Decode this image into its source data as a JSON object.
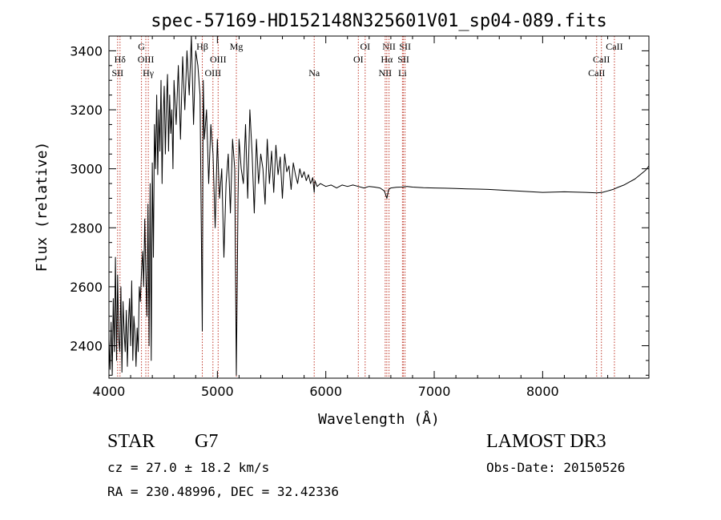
{
  "chart_data": {
    "type": "line",
    "title": "spec-57169-HD152148N325601V01_sp04-089.fits",
    "xlabel": "Wavelength (Å)",
    "ylabel": "Flux (relative)",
    "xlim": [
      4000,
      8980
    ],
    "ylim": [
      2290,
      3450
    ],
    "xticks": [
      4000,
      5000,
      6000,
      7000,
      8000
    ],
    "yticks": [
      2400,
      2600,
      2800,
      3000,
      3200,
      3400
    ],
    "grid": false,
    "series": [
      {
        "name": "spectrum",
        "x": [
          4000,
          4010,
          4020,
          4030,
          4040,
          4050,
          4060,
          4070,
          4080,
          4090,
          4100,
          4110,
          4120,
          4130,
          4140,
          4150,
          4160,
          4170,
          4180,
          4190,
          4200,
          4210,
          4220,
          4230,
          4240,
          4250,
          4260,
          4270,
          4280,
          4290,
          4300,
          4310,
          4320,
          4330,
          4340,
          4350,
          4360,
          4370,
          4380,
          4390,
          4400,
          4410,
          4420,
          4430,
          4440,
          4450,
          4460,
          4470,
          4480,
          4490,
          4500,
          4510,
          4520,
          4530,
          4540,
          4550,
          4560,
          4570,
          4580,
          4590,
          4600,
          4620,
          4640,
          4660,
          4680,
          4700,
          4720,
          4740,
          4760,
          4780,
          4800,
          4820,
          4840,
          4861,
          4870,
          4880,
          4900,
          4920,
          4940,
          4960,
          4980,
          5000,
          5020,
          5040,
          5060,
          5080,
          5100,
          5120,
          5140,
          5160,
          5175,
          5183,
          5190,
          5200,
          5220,
          5240,
          5260,
          5280,
          5300,
          5320,
          5340,
          5360,
          5380,
          5400,
          5420,
          5440,
          5460,
          5480,
          5500,
          5520,
          5540,
          5560,
          5580,
          5600,
          5620,
          5640,
          5660,
          5680,
          5700,
          5720,
          5740,
          5760,
          5780,
          5800,
          5820,
          5840,
          5860,
          5880,
          5893,
          5900,
          5920,
          5950,
          6000,
          6050,
          6100,
          6150,
          6200,
          6250,
          6300,
          6350,
          6400,
          6450,
          6500,
          6540,
          6563,
          6580,
          6600,
          6650,
          6700,
          6750,
          6800,
          6900,
          7000,
          7100,
          7200,
          7300,
          7400,
          7500,
          7600,
          7700,
          7800,
          7900,
          8000,
          8100,
          8200,
          8300,
          8400,
          8500,
          8550,
          8600,
          8650,
          8700,
          8750,
          8800,
          8850,
          8900,
          8950,
          8980
        ],
        "values": [
          2420,
          2320,
          2480,
          2300,
          2560,
          2380,
          2700,
          2350,
          2640,
          2420,
          2380,
          2600,
          2310,
          2550,
          2450,
          2380,
          2520,
          2330,
          2480,
          2560,
          2400,
          2620,
          2350,
          2500,
          2440,
          2330,
          2460,
          2380,
          2600,
          2550,
          2650,
          2720,
          2600,
          2830,
          2650,
          2500,
          2880,
          2400,
          2950,
          2350,
          3020,
          2700,
          3150,
          3000,
          3250,
          2980,
          3200,
          3060,
          3300,
          2950,
          3180,
          3280,
          3050,
          3220,
          3320,
          3060,
          3250,
          3120,
          3200,
          3000,
          3300,
          3150,
          3350,
          3100,
          3380,
          3200,
          3400,
          3250,
          3450,
          3150,
          3400,
          3350,
          3250,
          2450,
          3300,
          3100,
          3200,
          2950,
          3150,
          3050,
          2800,
          3100,
          2900,
          3000,
          2700,
          2950,
          3050,
          2850,
          3100,
          3000,
          2300,
          2600,
          2900,
          3100,
          3000,
          2950,
          3150,
          2900,
          3200,
          3050,
          2850,
          3100,
          2950,
          3050,
          3000,
          2880,
          3100,
          2950,
          3060,
          2920,
          3080,
          2980,
          3040,
          2900,
          3050,
          2990,
          3010,
          2930,
          3020,
          2980,
          2950,
          3000,
          2970,
          2990,
          2960,
          2980,
          2950,
          2970,
          2920,
          2960,
          2940,
          2950,
          2940,
          2945,
          2935,
          2945,
          2940,
          2945,
          2940,
          2935,
          2940,
          2938,
          2935,
          2925,
          2900,
          2930,
          2935,
          2937,
          2938,
          2940,
          2938,
          2936,
          2935,
          2934,
          2933,
          2932,
          2931,
          2930,
          2928,
          2926,
          2924,
          2922,
          2920,
          2921,
          2922,
          2921,
          2920,
          2918,
          2920,
          2925,
          2930,
          2938,
          2945,
          2955,
          2965,
          2980,
          2995,
          3010
        ]
      }
    ],
    "lines": [
      {
        "label": "Hδ",
        "x": 4102,
        "row": 1
      },
      {
        "label": "SII",
        "x": 4080,
        "row": 2
      },
      {
        "label": "G",
        "x": 4300,
        "row": 0
      },
      {
        "label": "OIII",
        "x": 4340,
        "row": 1
      },
      {
        "label": "Hγ",
        "x": 4363,
        "row": 2
      },
      {
        "label": "Hβ",
        "x": 4861,
        "row": 0
      },
      {
        "label": "OIII",
        "x": 5007,
        "row": 1
      },
      {
        "label": "OIII",
        "x": 4959,
        "row": 2
      },
      {
        "label": "Mg",
        "x": 5175,
        "row": 0
      },
      {
        "label": "Na",
        "x": 5893,
        "row": 2
      },
      {
        "label": "OI",
        "x": 6363,
        "row": 0
      },
      {
        "label": "OI",
        "x": 6300,
        "row": 1
      },
      {
        "label": "NII",
        "x": 6583,
        "row": 0
      },
      {
        "label": "Hα",
        "x": 6563,
        "row": 1
      },
      {
        "label": "NII",
        "x": 6548,
        "row": 2
      },
      {
        "label": "SII",
        "x": 6731,
        "row": 0
      },
      {
        "label": "SII",
        "x": 6716,
        "row": 1
      },
      {
        "label": "Li",
        "x": 6707,
        "row": 2
      },
      {
        "label": "CaII",
        "x": 8662,
        "row": 0
      },
      {
        "label": "CaII",
        "x": 8542,
        "row": 1
      },
      {
        "label": "CaII",
        "x": 8498,
        "row": 2
      }
    ]
  },
  "info": {
    "class_label": "STAR",
    "subclass": "G7",
    "survey": "LAMOST DR3",
    "cz": "cz = 27.0 ± 18.2 km/s",
    "obs_date": "Obs-Date: 20150526",
    "coords": "RA = 230.48996, DEC =  32.42336"
  }
}
